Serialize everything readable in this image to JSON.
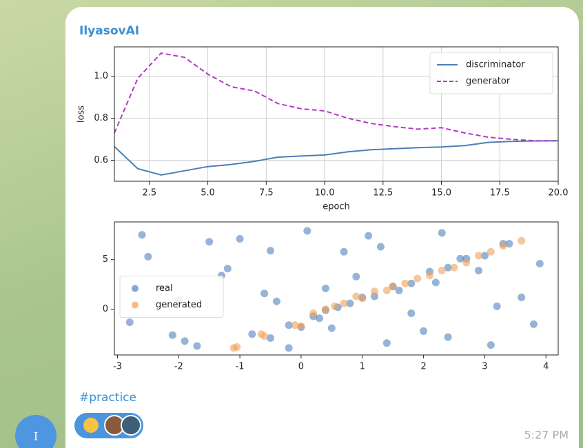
{
  "message": {
    "author": "IlyasovAI",
    "hashtag": "#practice",
    "time": "5:27 PM",
    "avatar_letter": "I"
  },
  "chart_data": [
    {
      "type": "line",
      "xlabel": "epoch",
      "ylabel": "loss",
      "x": [
        1,
        2,
        3,
        4,
        5,
        6,
        7,
        8,
        9,
        10,
        11,
        12,
        13,
        14,
        15,
        16,
        17,
        18,
        19,
        20
      ],
      "series": [
        {
          "name": "discriminator",
          "color": "#4a7fb5",
          "dash": false,
          "values": [
            0.665,
            0.56,
            0.53,
            0.55,
            0.57,
            0.58,
            0.595,
            0.615,
            0.62,
            0.625,
            0.64,
            0.65,
            0.655,
            0.66,
            0.663,
            0.67,
            0.685,
            0.69,
            0.692,
            0.693
          ]
        },
        {
          "name": "generator",
          "color": "#b03bbf",
          "dash": true,
          "values": [
            0.73,
            0.99,
            1.11,
            1.09,
            1.01,
            0.95,
            0.93,
            0.87,
            0.845,
            0.835,
            0.8,
            0.775,
            0.76,
            0.748,
            0.755,
            0.73,
            0.71,
            0.7,
            0.693,
            0.693
          ]
        }
      ],
      "xlim": [
        1,
        20
      ],
      "xticks": [
        2.5,
        {
          "value": 5,
          "label": "5.0"
        },
        7.5,
        {
          "value": 10,
          "label": "10.0"
        },
        12.5,
        {
          "value": 15,
          "label": "15.0"
        },
        17.5,
        {
          "value": 20,
          "label": "20.0"
        }
      ],
      "ylim": [
        0.5,
        1.14
      ],
      "yticks": [
        0.6,
        0.8,
        {
          "value": 1,
          "label": "1.0"
        }
      ],
      "grid": true,
      "legend": "upper right"
    },
    {
      "type": "scatter",
      "series": [
        {
          "name": "real",
          "color": "#4f82bd",
          "x": [
            -2.6,
            -1.9,
            -1.2,
            -0.4,
            0.5,
            1.3,
            2.2,
            3.1,
            -2.3,
            -1.5,
            -0.8,
            0.1,
            0.9,
            1.8,
            2.6,
            3.6,
            -2.8,
            -2.0,
            -1.0,
            -0.2,
            0.7,
            1.6,
            2.4,
            3.4,
            -2.5,
            -1.7,
            -0.6,
            0.3,
            1.1,
            2.0,
            2.9,
            3.8,
            -2.1,
            -1.3,
            -0.5,
            0.4,
            1.4,
            2.3,
            3.2,
            3.9,
            -0.5,
            -0.2,
            0.0,
            0.2,
            0.4,
            0.6,
            0.8,
            1.0,
            1.2,
            1.5,
            1.8,
            2.1,
            2.4,
            2.7,
            3.0,
            3.3
          ],
          "y": [
            7.5,
            -3.2,
            4.1,
            0.8,
            -1.9,
            6.3,
            2.7,
            -3.6,
            2.2,
            6.8,
            -2.5,
            7.9,
            3.3,
            -0.4,
            5.1,
            1.2,
            -1.3,
            0.9,
            7.1,
            -3.9,
            5.8,
            1.9,
            -2.8,
            6.6,
            5.3,
            -3.7,
            1.6,
            -0.9,
            7.4,
            -2.2,
            3.9,
            -1.5,
            -2.6,
            3.4,
            5.9,
            2.1,
            -3.4,
            7.7,
            0.3,
            4.6,
            -2.9,
            -1.6,
            -1.8,
            -0.7,
            -0.1,
            0.2,
            0.6,
            1.2,
            1.3,
            2.3,
            2.6,
            3.8,
            4.2,
            5.1,
            5.4,
            6.6
          ]
        },
        {
          "name": "generated",
          "color": "#f0a05a",
          "x": [
            -1.1,
            -1.05,
            -0.65,
            -0.6,
            -0.1,
            0.0,
            0.2,
            0.4,
            0.55,
            0.7,
            0.9,
            1.0,
            1.2,
            1.4,
            1.5,
            1.7,
            1.9,
            2.1,
            2.3,
            2.5,
            2.7,
            2.9,
            3.1,
            3.3,
            3.6
          ],
          "y": [
            -3.9,
            -3.8,
            -2.5,
            -2.7,
            -1.6,
            -1.7,
            -0.4,
            0.0,
            0.3,
            0.6,
            1.3,
            1.1,
            1.8,
            1.9,
            2.3,
            2.6,
            3.1,
            3.4,
            3.9,
            4.2,
            4.7,
            5.4,
            5.8,
            6.4,
            6.9
          ]
        }
      ],
      "xlim": [
        -3.05,
        4.2
      ],
      "xticks": [
        -3,
        -2,
        -1,
        0,
        1,
        2,
        3,
        4
      ],
      "ylim": [
        -4.6,
        8.8
      ],
      "yticks": [
        0,
        5
      ],
      "grid": false,
      "legend": "center left"
    }
  ]
}
